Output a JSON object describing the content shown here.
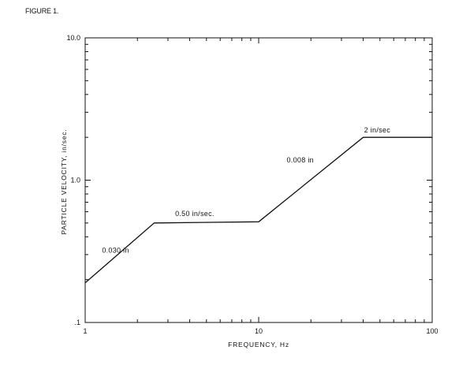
{
  "figure_label": "FIGURE 1.",
  "chart_data": {
    "type": "line",
    "title": "",
    "xlabel": "FREQUENCY, Hz",
    "ylabel": "PARTICLE VELOCITY, in/sec.",
    "xscale": "log",
    "yscale": "log",
    "xlim": [
      1,
      100
    ],
    "ylim": [
      0.1,
      10.0
    ],
    "x_tick_labels": [
      {
        "value": 1,
        "label": "1"
      },
      {
        "value": 10,
        "label": "10"
      },
      {
        "value": 100,
        "label": "100"
      }
    ],
    "y_tick_labels": [
      {
        "value": 0.1,
        "label": ".1"
      },
      {
        "value": 1.0,
        "label": "1.0"
      },
      {
        "value": 10.0,
        "label": "10.0"
      }
    ],
    "grid": false,
    "series": [
      {
        "x": [
          1,
          2.5,
          10,
          40,
          100
        ],
        "y": [
          0.19,
          0.5,
          0.51,
          2.0,
          2.0
        ],
        "color": "#111111"
      }
    ],
    "annotations": [
      {
        "text": "0.030 in",
        "x": 1.25,
        "y": 0.31
      },
      {
        "text": "0.50 in/sec.",
        "x": 3.3,
        "y": 0.56
      },
      {
        "text": "0.008 in",
        "x": 14.5,
        "y": 1.33
      },
      {
        "text": "2 in/sec",
        "x": 40.5,
        "y": 2.17
      }
    ]
  }
}
